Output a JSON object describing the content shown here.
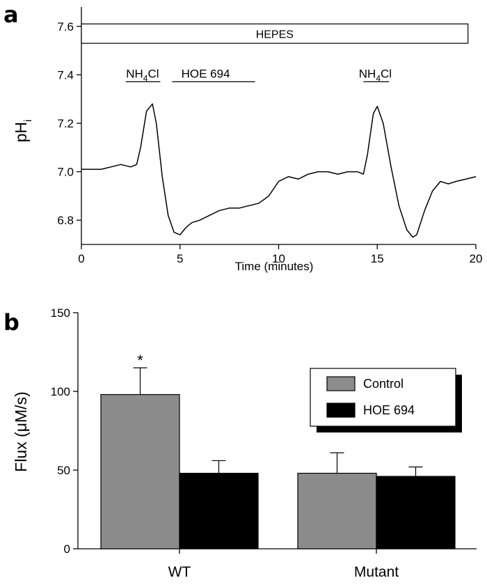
{
  "chart_data": [
    {
      "panel_label": "a",
      "type": "line",
      "xlabel": "Time (minutes)",
      "ylabel": "pH",
      "ylabel_sub": "i",
      "xlim": [
        0,
        20
      ],
      "ylim": [
        6.7,
        7.68
      ],
      "xticks": [
        0,
        5,
        10,
        15,
        20
      ],
      "yticks": [
        6.8,
        7.0,
        7.2,
        7.4,
        7.6
      ],
      "ytick_labels": [
        "6.8",
        "7.0",
        "7.2",
        "7.4",
        "7.6"
      ],
      "grid": false,
      "bars": [
        {
          "label": "HEPES",
          "start": 0,
          "end": 19.6,
          "level": [
            7.53,
            7.61
          ]
        }
      ],
      "annotations": [
        {
          "main": "NH",
          "sub": "4",
          "tail": "Cl",
          "start": 2.25,
          "end": 4.0,
          "x": 3.1,
          "y": 7.38
        },
        {
          "main": "HOE 694",
          "sub": "",
          "tail": "",
          "start": 4.6,
          "end": 8.8,
          "x": 6.3,
          "y": 7.38
        },
        {
          "main": "NH",
          "sub": "4",
          "tail": "Cl",
          "start": 14.3,
          "end": 15.6,
          "x": 14.9,
          "y": 7.38
        }
      ],
      "series": [
        {
          "x": [
            0,
            0.5,
            1,
            1.5,
            2,
            2.5,
            2.8,
            3.0,
            3.3,
            3.6,
            3.8,
            4.1,
            4.4,
            4.7,
            5.0,
            5.3,
            5.6,
            6.0,
            6.5,
            7.0,
            7.5,
            8.0,
            8.5,
            9.0,
            9.5,
            10.0,
            10.5,
            11.0,
            11.5,
            12.0,
            12.5,
            13.0,
            13.5,
            14.0,
            14.3,
            14.5,
            14.8,
            15.0,
            15.3,
            15.7,
            16.1,
            16.5,
            16.8,
            17.0,
            17.4,
            17.8,
            18.2,
            18.6,
            19.0,
            19.5,
            20.0
          ],
          "y": [
            7.01,
            7.01,
            7.01,
            7.02,
            7.03,
            7.02,
            7.03,
            7.1,
            7.25,
            7.28,
            7.2,
            6.98,
            6.82,
            6.75,
            6.74,
            6.77,
            6.79,
            6.8,
            6.82,
            6.84,
            6.85,
            6.85,
            6.86,
            6.87,
            6.9,
            6.96,
            6.98,
            6.97,
            6.99,
            7.0,
            7.0,
            6.99,
            7.0,
            7.0,
            6.99,
            7.07,
            7.24,
            7.27,
            7.2,
            7.02,
            6.86,
            6.76,
            6.73,
            6.74,
            6.84,
            6.92,
            6.96,
            6.95,
            6.96,
            6.97,
            6.98
          ]
        }
      ]
    },
    {
      "panel_label": "b",
      "type": "bar",
      "categories": [
        "WT",
        "Mutant"
      ],
      "ylabel": "Flux (μM/s)",
      "ylim": [
        0,
        150
      ],
      "yticks": [
        0,
        50,
        100,
        150
      ],
      "ytick_labels": [
        "0",
        "50",
        "100",
        "150"
      ],
      "grid": false,
      "legend_position": "right",
      "series": [
        {
          "name": "Control",
          "color": "#8c8c8c",
          "values": [
            98,
            48
          ],
          "errors": [
            17,
            13
          ]
        },
        {
          "name": "HOE 694",
          "color": "#000000",
          "values": [
            48,
            46
          ],
          "errors": [
            8,
            6
          ]
        }
      ],
      "significance": [
        {
          "category": "WT",
          "series": "Control",
          "mark": "*"
        }
      ]
    }
  ]
}
